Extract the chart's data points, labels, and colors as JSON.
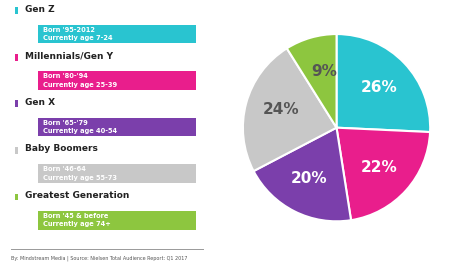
{
  "pie_values": [
    26,
    22,
    20,
    24,
    9
  ],
  "pie_colors": [
    "#29C4D0",
    "#E91E8C",
    "#7B3FAB",
    "#C8C8C8",
    "#8DC63F"
  ],
  "pie_labels": [
    "26%",
    "22%",
    "20%",
    "24%",
    "9%"
  ],
  "pie_startangle": 90,
  "legend_items": [
    {
      "name": "Gen Z",
      "color": "#29C4D0",
      "sub": "Born '95-2012\nCurrently age 7-24"
    },
    {
      "name": "Millennials/Gen Y",
      "color": "#E91E8C",
      "sub": "Born '80-'94\nCurrently age 25-39"
    },
    {
      "name": "Gen X",
      "color": "#7B3FAB",
      "sub": "Born '65-'79\nCurrently age 40-54"
    },
    {
      "name": "Baby Boomers",
      "color": "#C8C8C8",
      "sub": "Born '46-64\nCurrently age 55-73"
    },
    {
      "name": "Greatest Generation",
      "color": "#8DC63F",
      "sub": "Born '45 & before\nCurrently age 74+"
    }
  ],
  "footer": "By: Mindstream Media | Source: Nielsen Total Audience Report: Q1 2017",
  "background_color": "#FFFFFF",
  "label_fontsize": 11
}
